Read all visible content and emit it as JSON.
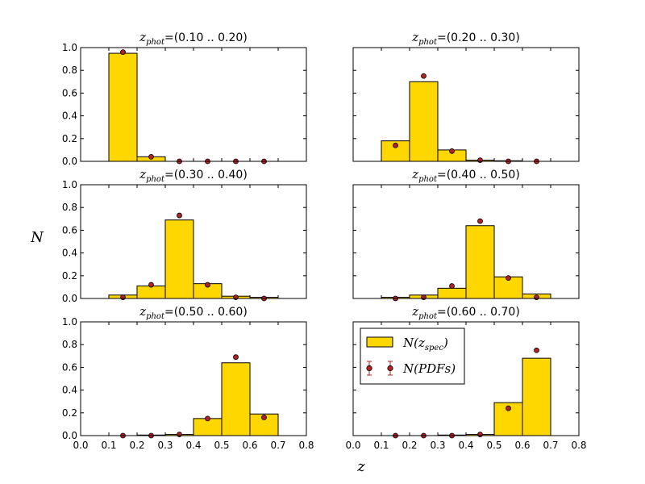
{
  "chart_data": {
    "type": "bar",
    "ylabel": "N",
    "xlabel": "z",
    "xlim": [
      0.0,
      0.8
    ],
    "ylim": [
      0.0,
      1.0
    ],
    "xticks": [
      "0.0",
      "0.1",
      "0.2",
      "0.3",
      "0.4",
      "0.5",
      "0.6",
      "0.7",
      "0.8"
    ],
    "yticks": [
      "0.0",
      "0.2",
      "0.4",
      "0.6",
      "0.8",
      "1.0"
    ],
    "bin_edges": [
      0.1,
      0.2,
      0.3,
      0.4,
      0.5,
      0.6,
      0.7
    ],
    "point_x": [
      0.15,
      0.25,
      0.35,
      0.45,
      0.55,
      0.65
    ],
    "title_prefix": "z",
    "title_sub": "phot",
    "legend": {
      "location": "upper-left of bottom-right panel",
      "hist_main": "N(z",
      "hist_sub": "spec",
      "hist_end": ")",
      "points_label": "N(PDFs)"
    },
    "colors": {
      "bar": "#FFD700",
      "point": "#B22222",
      "edge": "#000000"
    },
    "panels": [
      {
        "range": "=(0.10 .. 0.20)",
        "series": [
          {
            "name": "N(z_spec)",
            "values": [
              0.95,
              0.04,
              0.0,
              0.0,
              0.0,
              0.0
            ]
          },
          {
            "name": "N(PDFs)",
            "values": [
              0.96,
              0.04,
              0.0,
              0.0,
              0.0,
              0.0
            ]
          }
        ]
      },
      {
        "range": "=(0.20 .. 0.30)",
        "series": [
          {
            "name": "N(z_spec)",
            "values": [
              0.18,
              0.7,
              0.1,
              0.01,
              0.005,
              0.0
            ]
          },
          {
            "name": "N(PDFs)",
            "values": [
              0.14,
              0.75,
              0.09,
              0.01,
              0.0,
              0.0
            ]
          }
        ]
      },
      {
        "range": "=(0.30 .. 0.40)",
        "series": [
          {
            "name": "N(z_spec)",
            "values": [
              0.03,
              0.11,
              0.69,
              0.13,
              0.02,
              0.01
            ]
          },
          {
            "name": "N(PDFs)",
            "values": [
              0.01,
              0.12,
              0.73,
              0.12,
              0.01,
              0.0
            ]
          }
        ]
      },
      {
        "range": "=(0.40 .. 0.50)",
        "series": [
          {
            "name": "N(z_spec)",
            "values": [
              0.01,
              0.03,
              0.09,
              0.64,
              0.19,
              0.04
            ]
          },
          {
            "name": "N(PDFs)",
            "values": [
              0.0,
              0.01,
              0.11,
              0.68,
              0.18,
              0.01
            ]
          }
        ]
      },
      {
        "range": "=(0.50 .. 0.60)",
        "series": [
          {
            "name": "N(z_spec)",
            "values": [
              0.0,
              0.005,
              0.01,
              0.15,
              0.64,
              0.19
            ]
          },
          {
            "name": "N(PDFs)",
            "values": [
              0.0,
              0.0,
              0.01,
              0.15,
              0.69,
              0.16
            ]
          }
        ]
      },
      {
        "range": "=(0.60 .. 0.70)",
        "series": [
          {
            "name": "N(z_spec)",
            "values": [
              0.0,
              0.0,
              0.005,
              0.01,
              0.29,
              0.68
            ]
          },
          {
            "name": "N(PDFs)",
            "values": [
              0.0,
              0.0,
              0.0,
              0.01,
              0.24,
              0.75
            ]
          }
        ]
      }
    ]
  }
}
